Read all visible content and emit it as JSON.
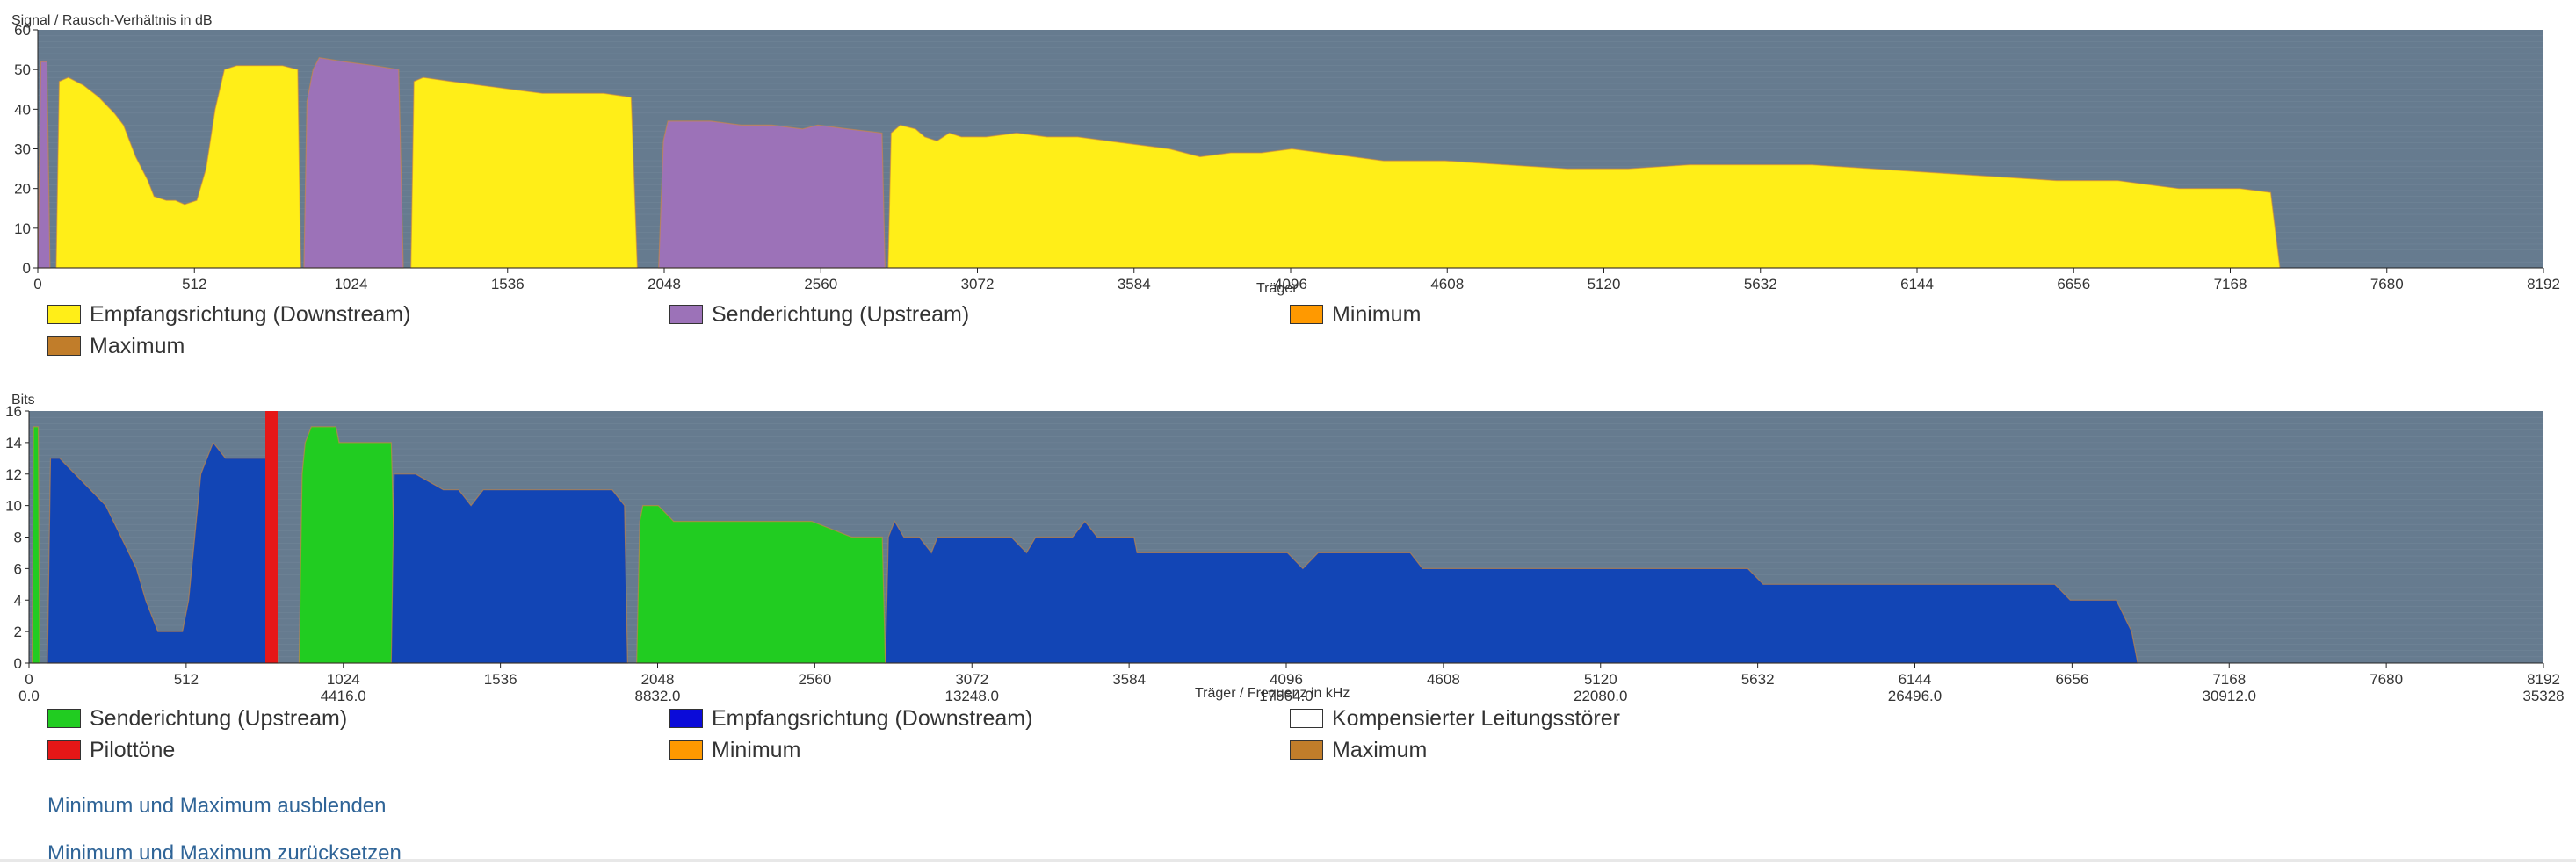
{
  "colors": {
    "plot_bg": "#667b8f",
    "grid": "#7e92a3",
    "snr_downstream": "#ffee18",
    "snr_upstream": "#9c72b8",
    "snr_outline": "#d4883b",
    "bits_upstream": "#21cc21",
    "bits_downstream": "#1245b5",
    "pilot": "#e61717",
    "minimum": "#ff9900",
    "maximum": "#c17d2a",
    "compensated": "#ffffff"
  },
  "chart_data": [
    {
      "type": "area",
      "ylabel": "Signal / Rausch-Verhältnis in dB",
      "xlabel": "Träger",
      "xlim": [
        0,
        8192
      ],
      "ylim": [
        0,
        60
      ],
      "x_ticks": [
        "0",
        "512",
        "1024",
        "1536",
        "2048",
        "2560",
        "3072",
        "3584",
        "4096",
        "4608",
        "5120",
        "5632",
        "6144",
        "6656",
        "7168",
        "7680",
        "8192"
      ],
      "y_ticks": [
        "0",
        "10",
        "20",
        "30",
        "40",
        "50",
        "60"
      ],
      "grid": true,
      "legend_position": "bottom",
      "legend": [
        {
          "label": "Empfangsrichtung (Downstream)",
          "color": "#ffee18"
        },
        {
          "label": "Senderichtung (Upstream)",
          "color": "#9c72b8"
        },
        {
          "label": "Minimum",
          "color": "#ff9900"
        },
        {
          "label": "Maximum",
          "color": "#c17d2a"
        }
      ],
      "series": [
        {
          "name": "Senderichtung (Upstream)",
          "color": "#9c72b8",
          "segments": [
            [
              [
                0,
                0
              ],
              [
                10,
                52
              ],
              [
                30,
                52
              ],
              [
                40,
                0
              ]
            ],
            [
              [
                870,
                0
              ],
              [
                880,
                42
              ],
              [
                900,
                50
              ],
              [
                920,
                53
              ],
              [
                1000,
                52
              ],
              [
                1100,
                51
              ],
              [
                1180,
                50
              ],
              [
                1195,
                0
              ]
            ],
            [
              [
                2030,
                0
              ],
              [
                2045,
                32
              ],
              [
                2060,
                37
              ],
              [
                2200,
                37
              ],
              [
                2300,
                36
              ],
              [
                2400,
                36
              ],
              [
                2500,
                35
              ],
              [
                2550,
                36
              ],
              [
                2650,
                35
              ],
              [
                2760,
                34
              ],
              [
                2770,
                0
              ]
            ]
          ]
        },
        {
          "name": "Empfangsrichtung (Downstream)",
          "color": "#ffee18",
          "segments": [
            [
              [
                60,
                0
              ],
              [
                70,
                47
              ],
              [
                100,
                48
              ],
              [
                150,
                46
              ],
              [
                200,
                43
              ],
              [
                250,
                39
              ],
              [
                280,
                36
              ],
              [
                320,
                28
              ],
              [
                360,
                22
              ],
              [
                380,
                18
              ],
              [
                420,
                17
              ],
              [
                450,
                17
              ],
              [
                480,
                16
              ],
              [
                520,
                17
              ],
              [
                550,
                25
              ],
              [
                580,
                40
              ],
              [
                610,
                50
              ],
              [
                650,
                51
              ],
              [
                700,
                51
              ],
              [
                750,
                51
              ],
              [
                800,
                51
              ],
              [
                850,
                50
              ],
              [
                860,
                0
              ]
            ],
            [
              [
                1220,
                0
              ],
              [
                1230,
                47
              ],
              [
                1260,
                48
              ],
              [
                1350,
                47
              ],
              [
                1450,
                46
              ],
              [
                1550,
                45
              ],
              [
                1650,
                44
              ],
              [
                1750,
                44
              ],
              [
                1850,
                44
              ],
              [
                1940,
                43
              ],
              [
                1960,
                0
              ]
            ],
            [
              [
                2780,
                0
              ],
              [
                2790,
                34
              ],
              [
                2820,
                36
              ],
              [
                2870,
                35
              ],
              [
                2900,
                33
              ],
              [
                2940,
                32
              ],
              [
                2980,
                34
              ],
              [
                3020,
                33
              ],
              [
                3100,
                33
              ],
              [
                3200,
                34
              ],
              [
                3300,
                33
              ],
              [
                3400,
                33
              ],
              [
                3500,
                32
              ],
              [
                3600,
                31
              ],
              [
                3700,
                30
              ],
              [
                3800,
                28
              ],
              [
                3900,
                29
              ],
              [
                4000,
                29
              ],
              [
                4100,
                30
              ],
              [
                4200,
                29
              ],
              [
                4300,
                28
              ],
              [
                4400,
                27
              ],
              [
                4500,
                27
              ],
              [
                4600,
                27
              ],
              [
                4800,
                26
              ],
              [
                5000,
                25
              ],
              [
                5200,
                25
              ],
              [
                5400,
                26
              ],
              [
                5600,
                26
              ],
              [
                5800,
                26
              ],
              [
                6000,
                25
              ],
              [
                6200,
                24
              ],
              [
                6400,
                23
              ],
              [
                6600,
                22
              ],
              [
                6800,
                22
              ],
              [
                6900,
                21
              ],
              [
                7000,
                20
              ],
              [
                7200,
                20
              ],
              [
                7300,
                19
              ],
              [
                7330,
                0
              ]
            ]
          ]
        }
      ]
    },
    {
      "type": "area",
      "ylabel": "Bits",
      "xlabel": "Träger / Frequenz in kHz",
      "xlim": [
        0,
        8192
      ],
      "ylim": [
        0,
        16
      ],
      "x_ticks": [
        "0",
        "512",
        "1024",
        "1536",
        "2048",
        "2560",
        "3072",
        "3584",
        "4096",
        "4608",
        "5120",
        "5632",
        "6144",
        "6656",
        "7168",
        "7680",
        "8192"
      ],
      "freq_ticks": [
        "0.0",
        "4416.0",
        "8832.0",
        "13248.0",
        "17664.0",
        "22080.0",
        "26496.0",
        "30912.0",
        "35328"
      ],
      "y_ticks": [
        "0",
        "2",
        "4",
        "6",
        "8",
        "10",
        "12",
        "14",
        "16"
      ],
      "grid": true,
      "legend_position": "bottom",
      "legend": [
        {
          "label": "Senderichtung (Upstream)",
          "color": "#21cc21"
        },
        {
          "label": "Empfangsrichtung (Downstream)",
          "color": "#0b0bd9"
        },
        {
          "label": "Kompensierter Leitungsstörer",
          "color": "#ffffff"
        },
        {
          "label": "Pilottöne",
          "color": "#e61717"
        },
        {
          "label": "Minimum",
          "color": "#ff9900"
        },
        {
          "label": "Maximum",
          "color": "#c17d2a"
        }
      ],
      "series": [
        {
          "name": "Senderichtung (Upstream)",
          "color": "#21cc21",
          "segments": [
            [
              [
                10,
                0
              ],
              [
                15,
                15
              ],
              [
                30,
                15
              ],
              [
                35,
                0
              ]
            ],
            [
              [
                880,
                0
              ],
              [
                890,
                12
              ],
              [
                900,
                14
              ],
              [
                920,
                15
              ],
              [
                1000,
                15
              ],
              [
                1010,
                14
              ],
              [
                1100,
                14
              ],
              [
                1180,
                14
              ],
              [
                1200,
                0
              ]
            ],
            [
              [
                1980,
                0
              ],
              [
                1990,
                9
              ],
              [
                2000,
                10
              ],
              [
                2050,
                10
              ],
              [
                2100,
                9
              ],
              [
                2200,
                9
              ],
              [
                2400,
                9
              ],
              [
                2550,
                9
              ],
              [
                2680,
                8
              ],
              [
                2780,
                8
              ],
              [
                2790,
                0
              ]
            ]
          ]
        },
        {
          "name": "Empfangsrichtung (Downstream)",
          "color": "#1245b5",
          "segments": [
            [
              [
                60,
                0
              ],
              [
                70,
                13
              ],
              [
                100,
                13
              ],
              [
                150,
                12
              ],
              [
                200,
                11
              ],
              [
                250,
                10
              ],
              [
                300,
                8
              ],
              [
                350,
                6
              ],
              [
                380,
                4
              ],
              [
                420,
                2
              ],
              [
                500,
                2
              ],
              [
                520,
                4
              ],
              [
                560,
                12
              ],
              [
                600,
                14
              ],
              [
                640,
                13
              ],
              [
                700,
                13
              ],
              [
                800,
                13
              ],
              [
                810,
                0
              ]
            ],
            [
              [
                1180,
                0
              ],
              [
                1190,
                12
              ],
              [
                1260,
                12
              ],
              [
                1350,
                11
              ],
              [
                1400,
                11
              ],
              [
                1440,
                10
              ],
              [
                1480,
                11
              ],
              [
                1550,
                11
              ],
              [
                1700,
                11
              ],
              [
                1900,
                11
              ],
              [
                1940,
                10
              ],
              [
                1950,
                0
              ]
            ],
            [
              [
                2790,
                0
              ],
              [
                2800,
                8
              ],
              [
                2820,
                9
              ],
              [
                2850,
                8
              ],
              [
                2900,
                8
              ],
              [
                2940,
                7
              ],
              [
                2960,
                8
              ],
              [
                3000,
                8
              ],
              [
                3200,
                8
              ],
              [
                3250,
                7
              ],
              [
                3280,
                8
              ],
              [
                3400,
                8
              ],
              [
                3440,
                9
              ],
              [
                3480,
                8
              ],
              [
                3600,
                8
              ],
              [
                3610,
                7
              ],
              [
                4100,
                7
              ],
              [
                4150,
                6
              ],
              [
                4200,
                7
              ],
              [
                4500,
                7
              ],
              [
                4540,
                6
              ],
              [
                5600,
                6
              ],
              [
                5650,
                5
              ],
              [
                6600,
                5
              ],
              [
                6650,
                4
              ],
              [
                6800,
                4
              ],
              [
                6850,
                2
              ],
              [
                6870,
                0
              ]
            ]
          ]
        }
      ],
      "pilot": {
        "name": "Pilottöne",
        "color": "#e61717",
        "x": [
          770,
          810
        ]
      }
    }
  ],
  "links": {
    "hide_minmax": "Minimum und Maximum ausblenden",
    "reset_minmax": "Minimum und Maximum zurücksetzen"
  }
}
